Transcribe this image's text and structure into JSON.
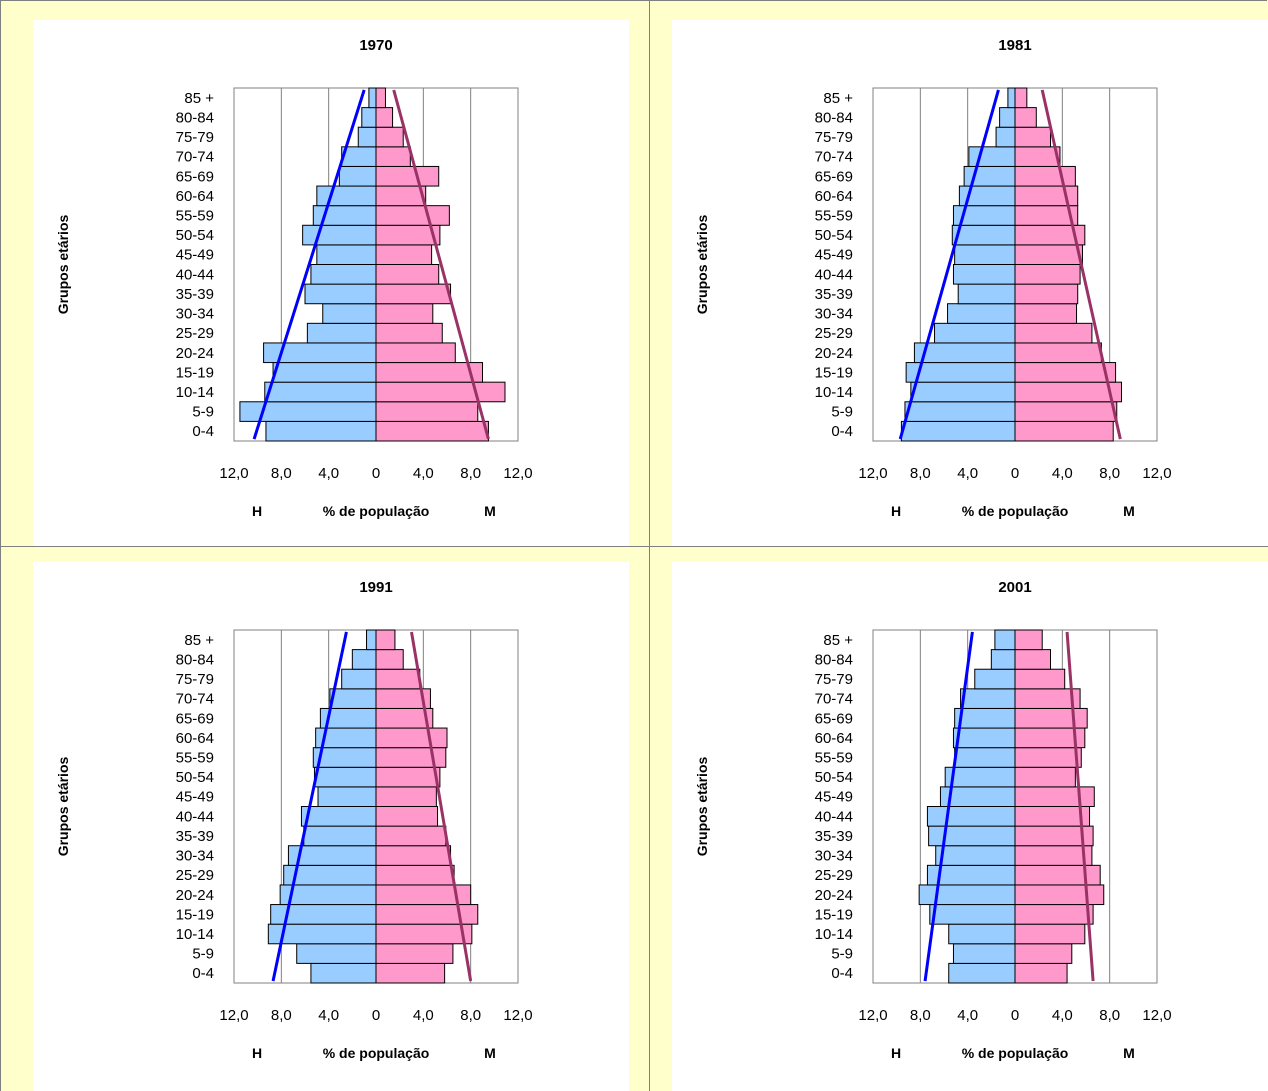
{
  "chart_data": [
    {
      "type": "bar",
      "subtype": "population-pyramid",
      "title": "1970",
      "ylabel": "Grupos etários",
      "xlabel": "% de população",
      "left_label": "H",
      "right_label": "M",
      "categories": [
        "0-4",
        "5-9",
        "10-14",
        "15-19",
        "20-24",
        "25-29",
        "30-34",
        "35-39",
        "40-44",
        "45-49",
        "50-54",
        "55-59",
        "60-64",
        "65-69",
        "70-74",
        "75-79",
        "80-84",
        "85 +"
      ],
      "series": [
        {
          "name": "H",
          "values": [
            9.3,
            11.5,
            9.4,
            8.7,
            9.5,
            5.8,
            4.5,
            6.0,
            5.5,
            5.0,
            6.2,
            5.3,
            5.0,
            3.1,
            2.9,
            1.5,
            1.2,
            0.6
          ]
        },
        {
          "name": "M",
          "values": [
            9.5,
            8.6,
            10.9,
            9.0,
            6.7,
            5.6,
            4.8,
            6.3,
            5.3,
            4.7,
            5.4,
            6.2,
            4.2,
            5.3,
            2.9,
            2.3,
            1.4,
            0.8
          ]
        }
      ],
      "trend_lines": [
        {
          "series": "H",
          "from": {
            "x": 10.3,
            "y": "0-4"
          },
          "to": {
            "x": 1.0,
            "y": "85 +"
          }
        },
        {
          "series": "M",
          "from": {
            "x": 9.5,
            "y": "0-4"
          },
          "to": {
            "x": 1.5,
            "y": "85 +"
          }
        }
      ],
      "xlim": [
        -12,
        12
      ],
      "xticks": [
        "12,0",
        "8,0",
        "4,0",
        "0",
        "4,0",
        "8,0",
        "12,0"
      ],
      "grid": true,
      "colors": {
        "H": "#99ccff",
        "M": "#ff99cc",
        "trend_H": "#0000ff",
        "trend_M": "#993366"
      }
    },
    {
      "type": "bar",
      "subtype": "population-pyramid",
      "title": "1981",
      "ylabel": "Grupos etários",
      "xlabel": "% de população",
      "left_label": "H",
      "right_label": "M",
      "categories": [
        "0-4",
        "5-9",
        "10-14",
        "15-19",
        "20-24",
        "25-29",
        "30-34",
        "35-39",
        "40-44",
        "45-49",
        "50-54",
        "55-59",
        "60-64",
        "65-69",
        "70-74",
        "75-79",
        "80-84",
        "85 +"
      ],
      "series": [
        {
          "name": "H",
          "values": [
            9.6,
            9.3,
            8.8,
            9.2,
            8.5,
            6.8,
            5.7,
            4.8,
            5.2,
            5.1,
            5.3,
            5.2,
            4.7,
            4.3,
            3.9,
            1.6,
            1.3,
            0.6
          ]
        },
        {
          "name": "M",
          "values": [
            8.3,
            8.6,
            9.0,
            8.5,
            7.3,
            6.5,
            5.2,
            5.3,
            5.5,
            5.7,
            5.9,
            5.3,
            5.3,
            5.1,
            3.8,
            3.0,
            1.8,
            1.0
          ]
        }
      ],
      "trend_lines": [
        {
          "series": "H",
          "from": {
            "x": 9.7,
            "y": "0-4"
          },
          "to": {
            "x": 1.4,
            "y": "85 +"
          }
        },
        {
          "series": "M",
          "from": {
            "x": 8.9,
            "y": "0-4"
          },
          "to": {
            "x": 2.3,
            "y": "85 +"
          }
        }
      ],
      "xlim": [
        -12,
        12
      ],
      "xticks": [
        "12,0",
        "8,0",
        "4,0",
        "0",
        "4,0",
        "8,0",
        "12,0"
      ],
      "grid": true,
      "colors": {
        "H": "#99ccff",
        "M": "#ff99cc",
        "trend_H": "#0000ff",
        "trend_M": "#993366"
      }
    },
    {
      "type": "bar",
      "subtype": "population-pyramid",
      "title": "1991",
      "ylabel": "Grupos etários",
      "xlabel": "% de população",
      "left_label": "H",
      "right_label": "M",
      "categories": [
        "0-4",
        "5-9",
        "10-14",
        "15-19",
        "20-24",
        "25-29",
        "30-34",
        "35-39",
        "40-44",
        "45-49",
        "50-54",
        "55-59",
        "60-64",
        "65-69",
        "70-74",
        "75-79",
        "80-84",
        "85 +"
      ],
      "series": [
        {
          "name": "H",
          "values": [
            5.5,
            6.7,
            9.1,
            8.9,
            8.1,
            7.8,
            7.4,
            6.1,
            6.3,
            4.9,
            5.2,
            5.3,
            5.1,
            4.7,
            3.9,
            2.9,
            2.0,
            0.8
          ]
        },
        {
          "name": "M",
          "values": [
            5.8,
            6.5,
            8.1,
            8.6,
            8.0,
            6.6,
            6.3,
            5.9,
            5.2,
            5.1,
            5.4,
            5.9,
            6.0,
            4.8,
            4.6,
            3.7,
            2.3,
            1.6
          ]
        }
      ],
      "trend_lines": [
        {
          "series": "H",
          "from": {
            "x": 8.7,
            "y": "0-4"
          },
          "to": {
            "x": 2.5,
            "y": "85 +"
          }
        },
        {
          "series": "M",
          "from": {
            "x": 8.0,
            "y": "0-4"
          },
          "to": {
            "x": 3.0,
            "y": "85 +"
          }
        }
      ],
      "xlim": [
        -12,
        12
      ],
      "xticks": [
        "12,0",
        "8,0",
        "4,0",
        "0",
        "4,0",
        "8,0",
        "12,0"
      ],
      "grid": true,
      "colors": {
        "H": "#99ccff",
        "M": "#ff99cc",
        "trend_H": "#0000ff",
        "trend_M": "#993366"
      }
    },
    {
      "type": "bar",
      "subtype": "population-pyramid",
      "title": "2001",
      "ylabel": "Grupos etários",
      "xlabel": "% de população",
      "left_label": "H",
      "right_label": "M",
      "categories": [
        "0-4",
        "5-9",
        "10-14",
        "15-19",
        "20-24",
        "25-29",
        "30-34",
        "35-39",
        "40-44",
        "45-49",
        "50-54",
        "55-59",
        "60-64",
        "65-69",
        "70-74",
        "75-79",
        "80-84",
        "85 +"
      ],
      "series": [
        {
          "name": "H",
          "values": [
            5.6,
            5.2,
            5.6,
            7.2,
            8.1,
            7.4,
            6.7,
            7.3,
            7.4,
            6.3,
            5.9,
            5.1,
            5.2,
            5.1,
            4.6,
            3.4,
            2.0,
            1.7
          ]
        },
        {
          "name": "M",
          "values": [
            4.4,
            4.8,
            5.9,
            6.6,
            7.5,
            7.2,
            6.5,
            6.6,
            6.3,
            6.7,
            5.1,
            5.6,
            5.9,
            6.1,
            5.5,
            4.2,
            3.0,
            2.3
          ]
        }
      ],
      "trend_lines": [
        {
          "series": "H",
          "from": {
            "x": 7.6,
            "y": "0-4"
          },
          "to": {
            "x": 3.6,
            "y": "85 +"
          }
        },
        {
          "series": "M",
          "from": {
            "x": 6.6,
            "y": "0-4"
          },
          "to": {
            "x": 4.4,
            "y": "85 +"
          }
        }
      ],
      "xlim": [
        -12,
        12
      ],
      "xticks": [
        "12,0",
        "8,0",
        "4,0",
        "0",
        "4,0",
        "8,0",
        "12,0"
      ],
      "grid": true,
      "colors": {
        "H": "#99ccff",
        "M": "#ff99cc",
        "trend_H": "#0000ff",
        "trend_M": "#993366"
      }
    }
  ]
}
